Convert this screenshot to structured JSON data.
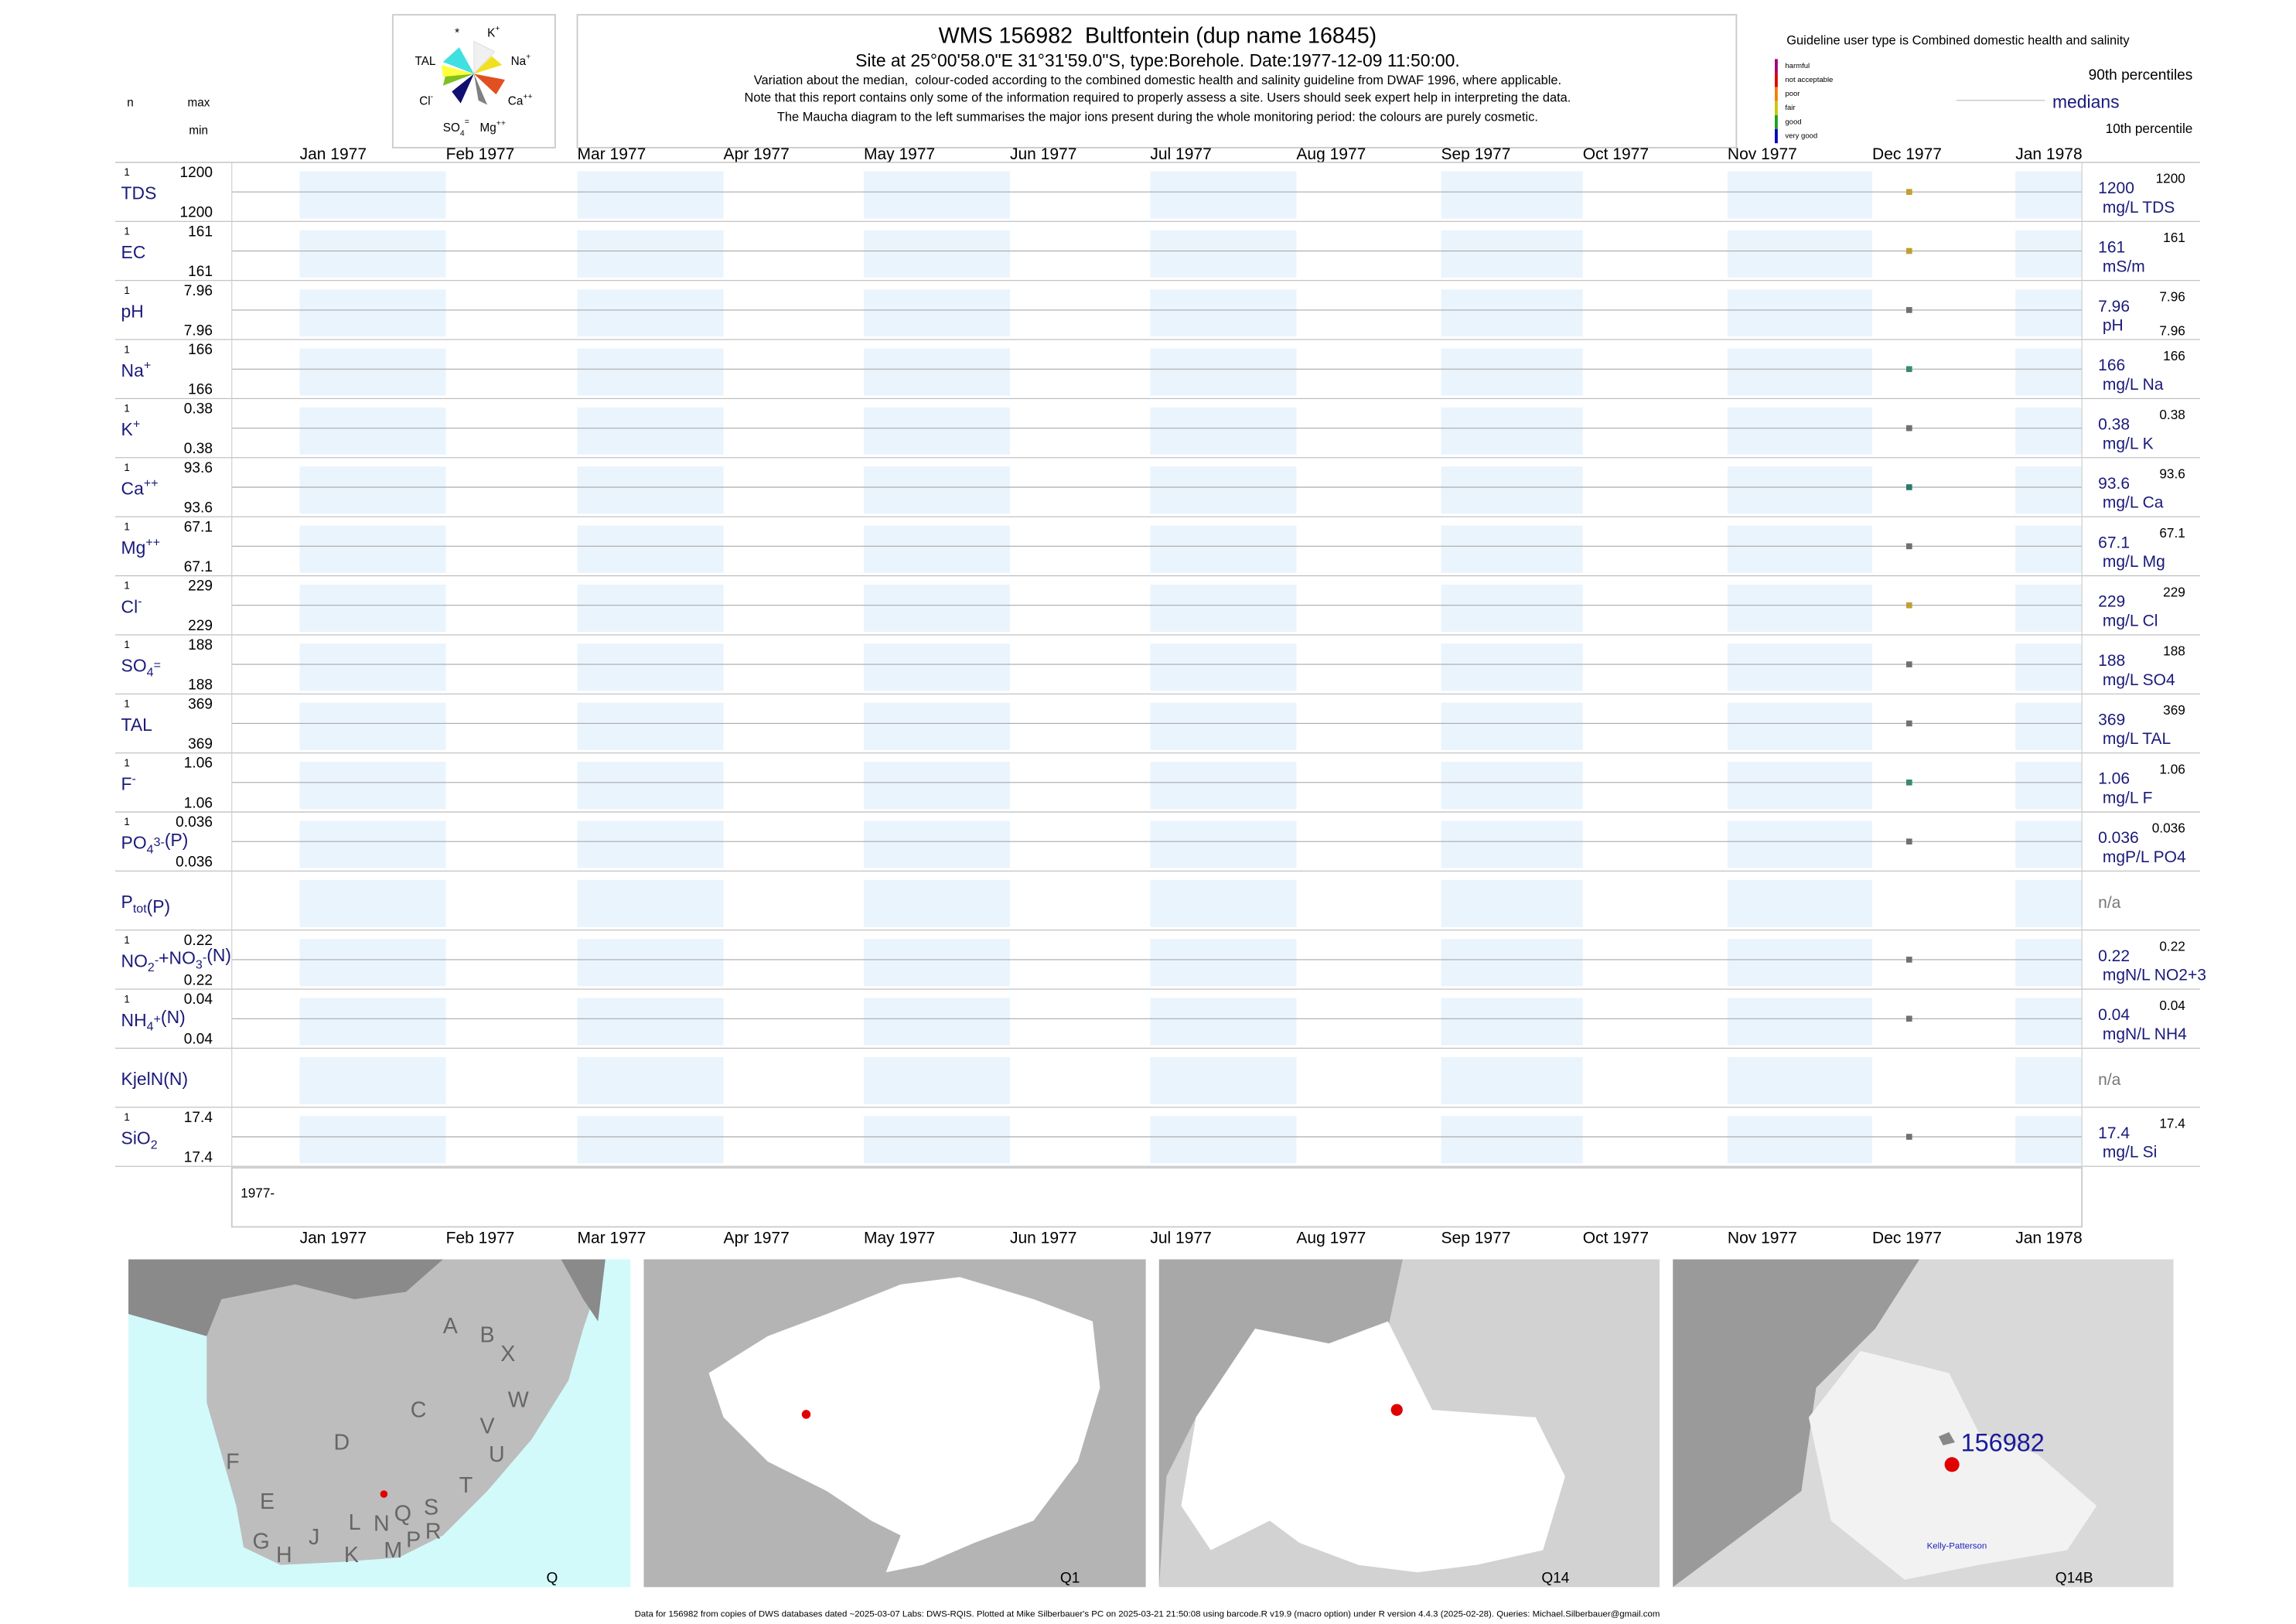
{
  "header": {
    "title": "WMS 156982  Bultfontein (dup name 16845)",
    "subtitle": "Site at 25°00'58.0\"E 31°31'59.0\"S, type:Borehole. Date:1977-12-09 11:50:00.",
    "notes": [
      "Variation about the median,  colour-coded according to the combined domestic health and salinity guideline from DWAF 1996, where applicable.",
      "Note that this report contains only some of the information required to properly assess a site. Users should seek expert help in interpreting the data.",
      "The Maucha diagram to the left summarises the major ions present during the whole monitoring period: the colours are purely cosmetic."
    ],
    "guideline": "Guideline user type is Combined domestic health and salinity",
    "legend": [
      {
        "label": "harmful",
        "color": "#a0007a"
      },
      {
        "label": "not acceptable",
        "color": "#e00000"
      },
      {
        "label": "poor",
        "color": "#f08000"
      },
      {
        "label": "fair",
        "color": "#c8c800"
      },
      {
        "label": "good",
        "color": "#20a020"
      },
      {
        "label": "very good",
        "color": "#0000c0"
      }
    ],
    "p90": "90th percentiles",
    "medians": "medians",
    "p10": "10th percentile",
    "n": "n",
    "max": "max",
    "min": "min"
  },
  "maucha": [
    {
      "text": "*"
    },
    {
      "text": "K",
      "sup": "+"
    },
    {
      "text": "TAL"
    },
    {
      "text": "Na",
      "sup": "+"
    },
    {
      "text": "Cl",
      "sup": "-"
    },
    {
      "text": "Ca",
      "sup": "++"
    },
    {
      "text": "SO",
      "sub": "4",
      "sup": "="
    },
    {
      "text": "Mg",
      "sup": "++"
    }
  ],
  "months": [
    "Jan 1977",
    "Feb 1977",
    "Mar 1977",
    "Apr 1977",
    "May 1977",
    "Jun 1977",
    "Jul 1977",
    "Aug 1977",
    "Sep 1977",
    "Oct 1977",
    "Nov 1977",
    "Dec 1977",
    "Jan 1978"
  ],
  "year_label": "1977-",
  "rows": [
    {
      "label": [
        {
          "text": "TDS"
        }
      ],
      "n": "1",
      "max": "1200",
      "min": "1200",
      "median": "1200",
      "unit": "mg/L TDS",
      "right_max": "1200",
      "dot_color": "#c0a030"
    },
    {
      "label": [
        {
          "text": "EC"
        }
      ],
      "n": "1",
      "max": "161",
      "min": "161",
      "median": "161",
      "unit": "mS/m",
      "right_max": "161",
      "dot_color": "#c0a030"
    },
    {
      "label": [
        {
          "text": "pH"
        }
      ],
      "n": "1",
      "max": "7.96",
      "min": "7.96",
      "median": "7.96",
      "unit": "pH",
      "right_max": "7.96",
      "right_min": "7.96",
      "dot_color": "#707070"
    },
    {
      "label": [
        {
          "text": "Na"
        },
        {
          "text": "+",
          "pos": "sup"
        }
      ],
      "n": "1",
      "max": "166",
      "min": "166",
      "median": "166",
      "unit": "mg/L Na",
      "right_max": "166",
      "dot_color": "#3a8a6a"
    },
    {
      "label": [
        {
          "text": "K"
        },
        {
          "text": "+",
          "pos": "sup"
        }
      ],
      "n": "1",
      "max": "0.38",
      "min": "0.38",
      "median": "0.38",
      "unit": "mg/L K",
      "right_max": "0.38",
      "dot_color": "#707070"
    },
    {
      "label": [
        {
          "text": "Ca"
        },
        {
          "text": "++",
          "pos": "sup"
        }
      ],
      "n": "1",
      "max": "93.6",
      "min": "93.6",
      "median": "93.6",
      "unit": "mg/L Ca",
      "right_max": "93.6",
      "dot_color": "#2a7a6a"
    },
    {
      "label": [
        {
          "text": "Mg"
        },
        {
          "text": "++",
          "pos": "sup"
        }
      ],
      "n": "1",
      "max": "67.1",
      "min": "67.1",
      "median": "67.1",
      "unit": "mg/L Mg",
      "right_max": "67.1",
      "dot_color": "#707070"
    },
    {
      "label": [
        {
          "text": "Cl"
        },
        {
          "text": "-",
          "pos": "sup"
        }
      ],
      "n": "1",
      "max": "229",
      "min": "229",
      "median": "229",
      "unit": "mg/L Cl",
      "right_max": "229",
      "dot_color": "#c0a030"
    },
    {
      "label": [
        {
          "text": "SO"
        },
        {
          "text": "4",
          "pos": "sub"
        },
        {
          "text": "=",
          "pos": "sup"
        }
      ],
      "n": "1",
      "max": "188",
      "min": "188",
      "median": "188",
      "unit": "mg/L SO4",
      "right_max": "188",
      "dot_color": "#707070"
    },
    {
      "label": [
        {
          "text": "TAL"
        }
      ],
      "n": "1",
      "max": "369",
      "min": "369",
      "median": "369",
      "unit": "mg/L TAL",
      "right_max": "369",
      "dot_color": "#707070"
    },
    {
      "label": [
        {
          "text": "F"
        },
        {
          "text": "-",
          "pos": "sup"
        }
      ],
      "n": "1",
      "max": "1.06",
      "min": "1.06",
      "median": "1.06",
      "unit": "mg/L F",
      "right_max": "1.06",
      "dot_color": "#3a8a6a"
    },
    {
      "label": [
        {
          "text": "PO"
        },
        {
          "text": "4",
          "pos": "sub"
        },
        {
          "text": "3-",
          "pos": "sup"
        },
        {
          "text": "(P)"
        }
      ],
      "n": "1",
      "max": "0.036",
      "min": "0.036",
      "median": "0.036",
      "unit": "mgP/L PO4",
      "right_max": "0.036",
      "dot_color": "#707070"
    },
    {
      "label": [
        {
          "text": "P"
        },
        {
          "text": "tot",
          "pos": "sub"
        },
        {
          "text": "(P)"
        }
      ],
      "median": "n/a"
    },
    {
      "label": [
        {
          "text": "NO"
        },
        {
          "text": "2",
          "pos": "sub"
        },
        {
          "text": "-",
          "pos": "sup"
        },
        {
          "text": "+NO"
        },
        {
          "text": "3",
          "pos": "sub"
        },
        {
          "text": "-",
          "pos": "sup"
        },
        {
          "text": "(N)"
        }
      ],
      "n": "1",
      "max": "0.22",
      "min": "0.22",
      "median": "0.22",
      "unit": "mgN/L NO2+3",
      "right_max": "0.22",
      "dot_color": "#707070"
    },
    {
      "label": [
        {
          "text": "NH"
        },
        {
          "text": "4",
          "pos": "sub"
        },
        {
          "text": "+",
          "pos": "sup"
        },
        {
          "text": "(N)"
        }
      ],
      "n": "1",
      "max": "0.04",
      "min": "0.04",
      "median": "0.04",
      "unit": "mgN/L NH4",
      "right_max": "0.04",
      "dot_color": "#707070"
    },
    {
      "label": [
        {
          "text": "KjelN(N)"
        }
      ],
      "median": "n/a"
    },
    {
      "label": [
        {
          "text": "SiO"
        },
        {
          "text": "2",
          "pos": "sub"
        }
      ],
      "n": "1",
      "max": "17.4",
      "min": "17.4",
      "median": "17.4",
      "unit": "mg/L Si",
      "right_max": "17.4",
      "dot_color": "#707070"
    }
  ],
  "maps": {
    "panels": [
      "Q",
      "Q1",
      "Q14",
      "Q14B"
    ],
    "regions": [
      "A",
      "B",
      "X",
      "W",
      "C",
      "V",
      "U",
      "D",
      "T",
      "F",
      "E",
      "S",
      "Q",
      "N",
      "L",
      "R",
      "J",
      "G",
      "H",
      "K",
      "M",
      "P"
    ],
    "site_label": "156982",
    "place": "Kelly-Patterson"
  },
  "footer": "Data for 156982 from copies of DWS databases dated ~2025-03-07 Labs: DWS-RQIS. Plotted at Mike Silberbauer's PC on 2025-03-21 21:50:08 using barcode.R v19.9 (macro option) under R version 4.4.3 (2025-02-28). Queries: Michael.Silberbauer@gmail.com"
}
